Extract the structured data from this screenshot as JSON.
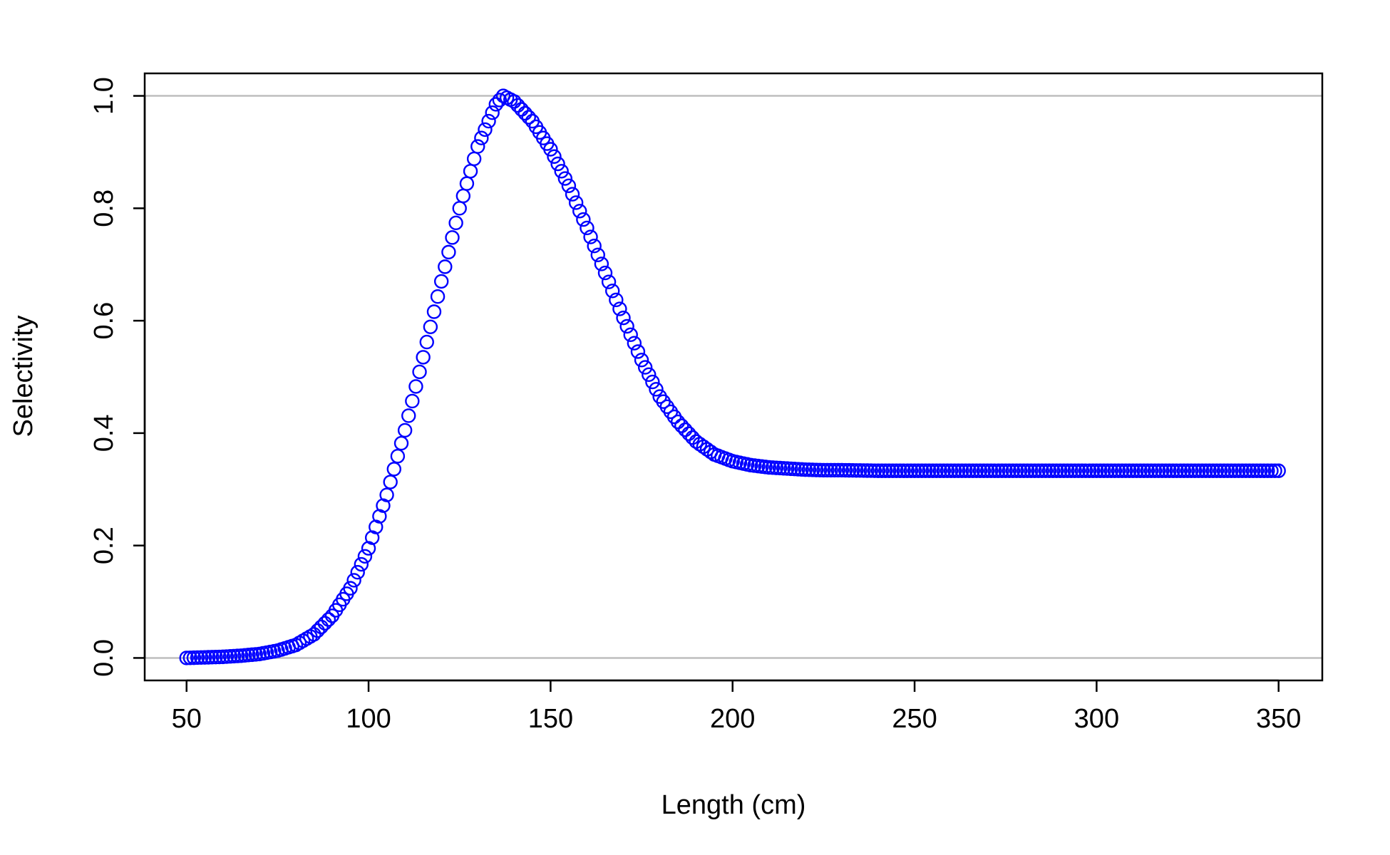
{
  "chart_data": {
    "type": "scatter",
    "title": "",
    "xlabel": "Length (cm)",
    "ylabel": "Selectivity",
    "xlim": [
      38.5,
      362
    ],
    "ylim": [
      -0.04,
      1.04
    ],
    "xticks": [
      50,
      100,
      150,
      200,
      250,
      300,
      350
    ],
    "yticks": [
      0.0,
      0.2,
      0.4,
      0.6,
      0.8,
      1.0
    ],
    "xtick_labels": [
      "50",
      "100",
      "150",
      "200",
      "250",
      "300",
      "350"
    ],
    "ytick_labels": [
      "0.0",
      "0.2",
      "0.4",
      "0.6",
      "0.8",
      "1.0"
    ],
    "reference_lines_y": [
      0.0,
      1.0
    ],
    "reference_line_color": "#bebebe",
    "point_color": "#0000ff",
    "marker": "open-circle",
    "grid": false,
    "legend": "none",
    "series": [
      {
        "x": [
          50,
          55,
          60,
          65,
          70,
          75,
          80,
          85,
          90,
          95,
          100,
          105,
          110,
          115,
          120,
          125,
          130,
          135,
          137,
          140,
          145,
          150,
          155,
          160,
          165,
          170,
          175,
          180,
          185,
          190,
          195,
          200,
          205,
          210,
          215,
          220,
          225,
          230,
          240,
          250,
          260,
          270,
          280,
          290,
          300,
          310,
          320,
          330,
          340,
          350
        ],
        "y": [
          0.0,
          0.001,
          0.002,
          0.004,
          0.007,
          0.013,
          0.023,
          0.042,
          0.075,
          0.124,
          0.195,
          0.29,
          0.405,
          0.535,
          0.67,
          0.8,
          0.91,
          0.985,
          1.0,
          0.99,
          0.955,
          0.905,
          0.84,
          0.765,
          0.685,
          0.605,
          0.53,
          0.465,
          0.42,
          0.385,
          0.362,
          0.35,
          0.343,
          0.339,
          0.337,
          0.335,
          0.334,
          0.334,
          0.333,
          0.333,
          0.333,
          0.333,
          0.333,
          0.333,
          0.333,
          0.333,
          0.333,
          0.333,
          0.333,
          0.333
        ]
      }
    ]
  }
}
